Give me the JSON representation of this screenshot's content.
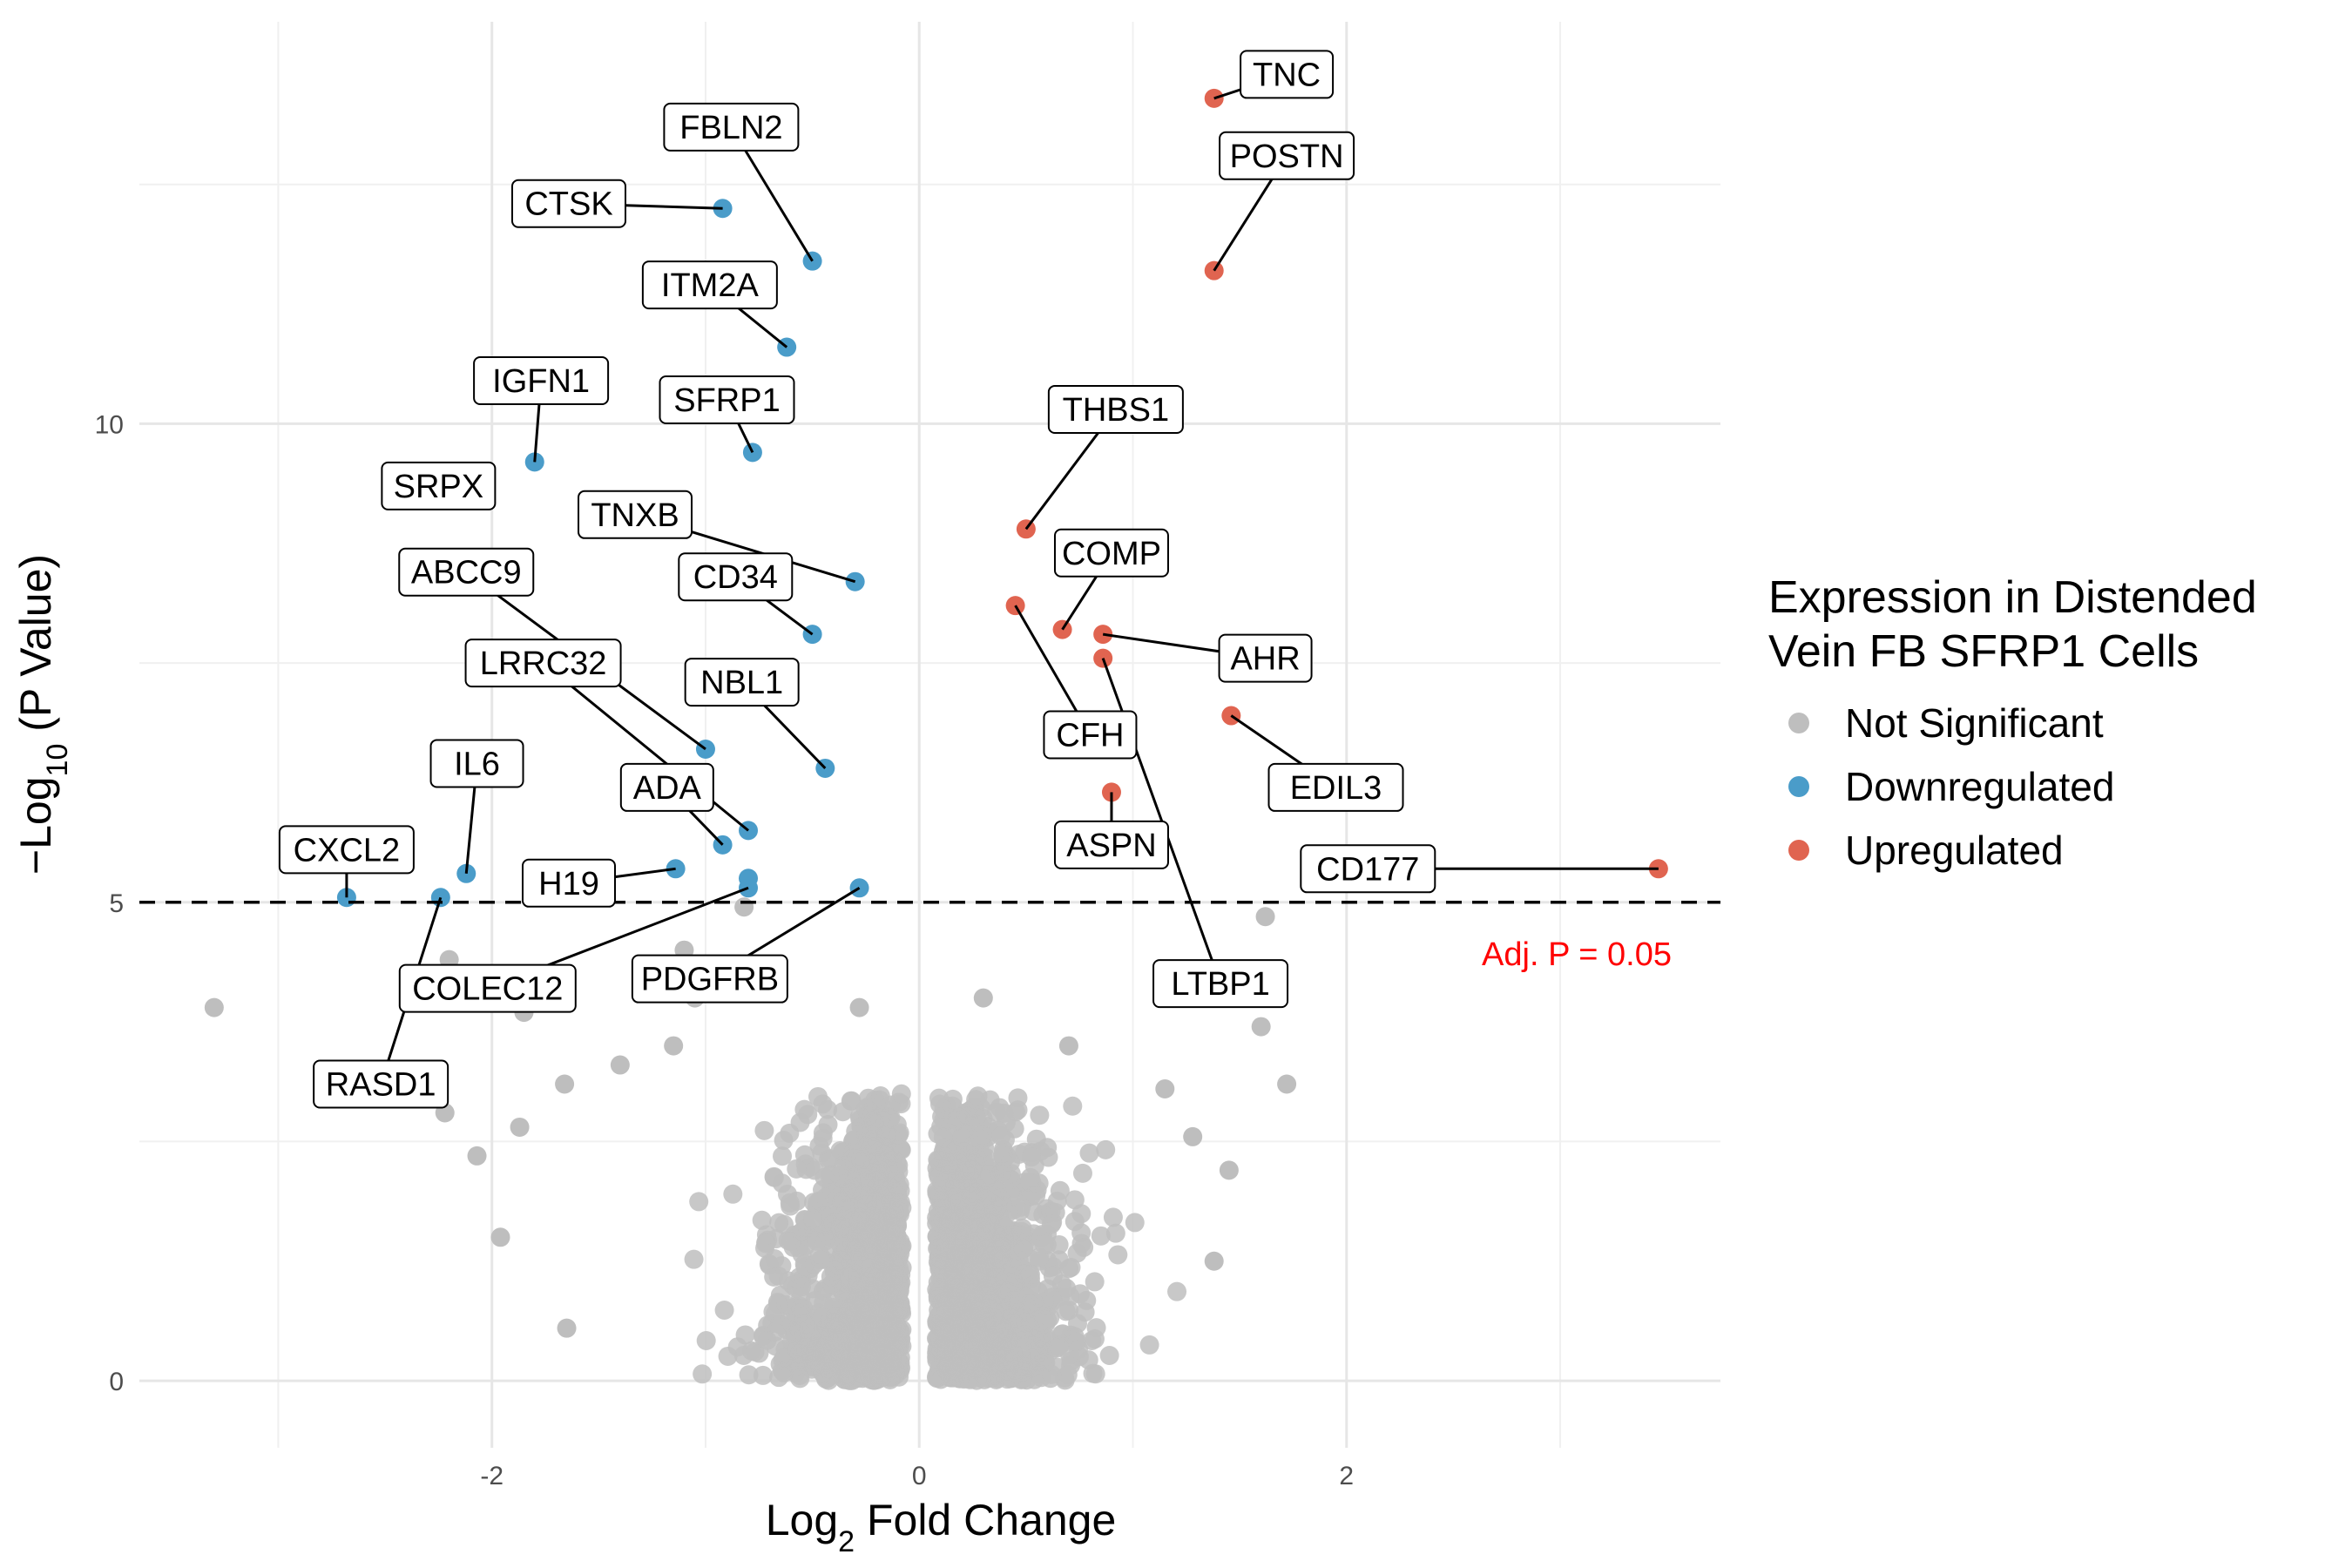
{
  "chart_data": {
    "type": "scatter",
    "title": "",
    "xlabel": {
      "main": "Log",
      "sub": "2",
      "tail": " Fold Change"
    },
    "ylabel": {
      "head": "−Log",
      "sub": "10",
      "tail": " (P Value)"
    },
    "xlim": [
      -3.65,
      3.75
    ],
    "ylim": [
      -0.7,
      14.2
    ],
    "x_ticks": [
      -2,
      0,
      2
    ],
    "y_ticks": [
      0,
      5,
      10
    ],
    "grid": true,
    "threshold": {
      "y": 5,
      "label": "Adj. P = 0.05",
      "color": "#ff0000"
    },
    "legend": {
      "title_lines": [
        "Expression in Distended",
        "Vein FB SFRP1 Cells"
      ],
      "entries": [
        {
          "name": "Not Significant",
          "color": "#bebebe"
        },
        {
          "name": "Downregulated",
          "color": "#4a9cc9"
        },
        {
          "name": "Upregulated",
          "color": "#e06450"
        }
      ],
      "placement": "right"
    },
    "labeled_points": [
      {
        "gene": "TNC",
        "x": 1.38,
        "y": 13.4,
        "group": "up",
        "label_x": 1.72,
        "label_y": 13.65
      },
      {
        "gene": "POSTN",
        "x": 1.38,
        "y": 11.6,
        "group": "up",
        "label_x": 1.72,
        "label_y": 12.8
      },
      {
        "gene": "THBS1",
        "x": 0.5,
        "y": 8.9,
        "group": "up",
        "label_x": 0.92,
        "label_y": 10.15
      },
      {
        "gene": "COMP",
        "x": 0.67,
        "y": 7.85,
        "group": "up",
        "label_x": 0.9,
        "label_y": 8.65
      },
      {
        "gene": "AHR",
        "x": 0.86,
        "y": 7.8,
        "group": "up",
        "label_x": 1.62,
        "label_y": 7.55
      },
      {
        "gene": "CFH",
        "x": 0.45,
        "y": 8.1,
        "group": "up",
        "label_x": 0.8,
        "label_y": 6.75
      },
      {
        "gene": "LTBP1",
        "x": 0.86,
        "y": 7.55,
        "group": "up",
        "label_x": 1.41,
        "label_y": 4.15
      },
      {
        "gene": "EDIL3",
        "x": 1.46,
        "y": 6.95,
        "group": "up",
        "label_x": 1.95,
        "label_y": 6.2
      },
      {
        "gene": "ASPN",
        "x": 0.9,
        "y": 6.15,
        "group": "up",
        "label_x": 0.9,
        "label_y": 5.6
      },
      {
        "gene": "CD177",
        "x": 3.46,
        "y": 5.35,
        "group": "up",
        "label_x": 2.1,
        "label_y": 5.35
      },
      {
        "gene": "FBLN2",
        "x": -0.5,
        "y": 11.7,
        "group": "down",
        "label_x": -0.88,
        "label_y": 13.1
      },
      {
        "gene": "CTSK",
        "x": -0.92,
        "y": 12.25,
        "group": "down",
        "label_x": -1.64,
        "label_y": 12.3
      },
      {
        "gene": "ITM2A",
        "x": -0.62,
        "y": 10.8,
        "group": "down",
        "label_x": -0.98,
        "label_y": 11.45
      },
      {
        "gene": "IGFN1",
        "x": -1.8,
        "y": 9.6,
        "group": "down",
        "label_x": -1.77,
        "label_y": 10.45
      },
      {
        "gene": "SFRP1",
        "x": -0.78,
        "y": 9.7,
        "group": "down",
        "label_x": -0.9,
        "label_y": 10.25
      },
      {
        "gene": "SRPX",
        "x": -2.25,
        "y": 9.35,
        "group": "down",
        "label_x": -2.25,
        "label_y": 9.35
      },
      {
        "gene": "TNXB",
        "x": -0.3,
        "y": 8.35,
        "group": "down",
        "label_x": -1.33,
        "label_y": 9.05
      },
      {
        "gene": "CD34",
        "x": -0.5,
        "y": 7.8,
        "group": "down",
        "label_x": -0.86,
        "label_y": 8.4
      },
      {
        "gene": "ABCC9",
        "x": -1.0,
        "y": 6.6,
        "group": "down",
        "label_x": -2.12,
        "label_y": 8.45
      },
      {
        "gene": "LRRC32",
        "x": -0.8,
        "y": 5.75,
        "group": "down",
        "label_x": -1.76,
        "label_y": 7.5
      },
      {
        "gene": "NBL1",
        "x": -0.44,
        "y": 6.4,
        "group": "down",
        "label_x": -0.83,
        "label_y": 7.3
      },
      {
        "gene": "IL6",
        "x": -2.12,
        "y": 5.3,
        "group": "down",
        "label_x": -2.07,
        "label_y": 6.45
      },
      {
        "gene": "ADA",
        "x": -0.92,
        "y": 5.6,
        "group": "down",
        "label_x": -1.18,
        "label_y": 6.2
      },
      {
        "gene": "CXCL2",
        "x": -2.68,
        "y": 5.05,
        "group": "down",
        "label_x": -2.68,
        "label_y": 5.55
      },
      {
        "gene": "H19",
        "x": -1.14,
        "y": 5.35,
        "group": "down",
        "label_x": -1.64,
        "label_y": 5.2
      },
      {
        "gene": "COLEC12",
        "x": -0.8,
        "y": 5.15,
        "group": "down",
        "label_x": -2.02,
        "label_y": 4.1
      },
      {
        "gene": "RASD1",
        "x": -2.24,
        "y": 5.05,
        "group": "down",
        "label_x": -2.52,
        "label_y": 3.1
      },
      {
        "gene": "PDGFRB",
        "x": -0.28,
        "y": 5.15,
        "group": "down",
        "label_x": -0.98,
        "label_y": 4.2
      }
    ],
    "extra_down_points": [
      {
        "x": -0.8,
        "y": 5.25
      }
    ],
    "not_significant_outliers": [
      {
        "x": -3.3,
        "y": 3.9
      },
      {
        "x": 1.62,
        "y": 4.85
      },
      {
        "x": 1.6,
        "y": 3.7
      },
      {
        "x": 1.72,
        "y": 3.1
      },
      {
        "x": -2.2,
        "y": 4.4
      },
      {
        "x": -1.05,
        "y": 4.0
      },
      {
        "x": -1.1,
        "y": 4.5
      },
      {
        "x": -1.85,
        "y": 3.85
      },
      {
        "x": -0.82,
        "y": 4.95
      },
      {
        "x": -2.22,
        "y": 2.8
      },
      {
        "x": -2.07,
        "y": 2.35
      },
      {
        "x": -1.87,
        "y": 2.65
      },
      {
        "x": -1.66,
        "y": 3.1
      },
      {
        "x": -1.4,
        "y": 3.3
      },
      {
        "x": -1.15,
        "y": 3.5
      },
      {
        "x": 1.28,
        "y": 2.55
      },
      {
        "x": 1.45,
        "y": 2.2
      },
      {
        "x": 1.15,
        "y": 3.05
      },
      {
        "x": 0.3,
        "y": 4.0
      },
      {
        "x": -0.28,
        "y": 3.9
      },
      {
        "x": 1.38,
        "y": 1.25
      },
      {
        "x": -1.65,
        "y": 0.55
      },
      {
        "x": -1.96,
        "y": 1.5
      },
      {
        "x": 0.7,
        "y": 3.5
      }
    ],
    "not_significant_cloud": {
      "count": 2200,
      "x_range": [
        -1.6,
        1.4
      ],
      "y_range": [
        0,
        3.0
      ],
      "gap_around_zero": 0.08
    }
  }
}
